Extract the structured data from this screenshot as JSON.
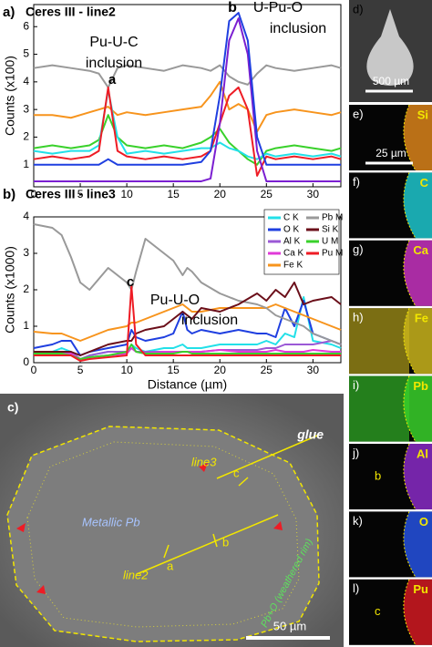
{
  "chart_data": [
    {
      "type": "line",
      "title": "Ceres III - line2",
      "ylabel": "Counts (x100)",
      "annotations": [
        "a)",
        "Pu-U-C",
        "inclusion",
        "a",
        "b",
        "U-Pu-O",
        "inclusion"
      ],
      "x": [
        0,
        2,
        4,
        6,
        7,
        8,
        9,
        10,
        12,
        14,
        16,
        18,
        19,
        20,
        21,
        22,
        23,
        24,
        25,
        26,
        28,
        30,
        32,
        33
      ],
      "xlim": [
        0,
        33
      ],
      "xticks": [
        0,
        5,
        10,
        15,
        20,
        25,
        30
      ],
      "ylim": [
        0.2,
        6.8
      ],
      "yticks": [
        1,
        2,
        3,
        4,
        5,
        6
      ],
      "series": [
        {
          "color": "#999999",
          "values": [
            4.5,
            4.6,
            4.5,
            4.4,
            4.3,
            3.8,
            4.5,
            4.6,
            4.5,
            4.4,
            4.6,
            4.5,
            4.4,
            4.6,
            4.2,
            4.0,
            3.9,
            4.3,
            4.6,
            4.5,
            4.4,
            4.5,
            4.6,
            4.5
          ]
        },
        {
          "color": "#f7941d",
          "values": [
            2.8,
            2.8,
            2.7,
            2.9,
            3.0,
            3.1,
            2.8,
            2.9,
            2.8,
            2.9,
            3.0,
            3.1,
            3.5,
            4.0,
            3.0,
            3.2,
            3.0,
            2.2,
            2.8,
            2.9,
            3.0,
            2.9,
            2.8,
            2.9
          ]
        },
        {
          "color": "#39d12b",
          "values": [
            1.6,
            1.7,
            1.6,
            1.7,
            1.9,
            2.8,
            2.0,
            1.7,
            1.6,
            1.7,
            1.6,
            1.8,
            2.0,
            2.3,
            1.8,
            1.5,
            1.2,
            1.0,
            1.5,
            1.6,
            1.7,
            1.6,
            1.5,
            1.6
          ]
        },
        {
          "color": "#22e0e8",
          "values": [
            1.5,
            1.4,
            1.5,
            1.5,
            1.7,
            3.7,
            2.0,
            1.4,
            1.5,
            1.4,
            1.5,
            1.6,
            1.6,
            1.8,
            1.6,
            1.5,
            1.3,
            1.2,
            1.4,
            1.3,
            1.4,
            1.3,
            1.4,
            1.3
          ]
        },
        {
          "color": "#ee1c25",
          "values": [
            1.2,
            1.3,
            1.2,
            1.3,
            1.5,
            3.8,
            1.5,
            1.3,
            1.2,
            1.3,
            1.2,
            1.3,
            1.5,
            2.5,
            3.5,
            3.8,
            3.0,
            0.6,
            1.3,
            1.2,
            1.3,
            1.2,
            1.3,
            1.2
          ]
        },
        {
          "color": "#7b1fd1",
          "values": [
            0.4,
            0.4,
            0.4,
            0.4,
            0.4,
            0.4,
            0.4,
            0.4,
            0.4,
            0.4,
            0.4,
            0.4,
            0.5,
            2.5,
            5.5,
            6.3,
            5.0,
            1.5,
            0.4,
            0.4,
            0.4,
            0.4,
            0.4,
            0.4
          ]
        },
        {
          "color": "#1f3fe0",
          "values": [
            1.0,
            1.0,
            1.0,
            1.0,
            1.0,
            1.2,
            1.0,
            1.0,
            1.0,
            1.0,
            1.0,
            1.1,
            1.5,
            3.5,
            6.2,
            6.5,
            5.5,
            2.0,
            1.0,
            1.0,
            1.0,
            1.0,
            1.0,
            1.0
          ]
        }
      ]
    },
    {
      "type": "line",
      "title": "Ceres III - line3",
      "xlabel": "Distance (µm)",
      "ylabel": "Counts (x1000)",
      "annotations": [
        "b)",
        "c",
        "Pu-U-O",
        "inclusion"
      ],
      "x": [
        0,
        2,
        3,
        4,
        5,
        6,
        8,
        10,
        10.5,
        11,
        12,
        14,
        15,
        16,
        16.5,
        17,
        18,
        20,
        22,
        24,
        25,
        26,
        27,
        28,
        29,
        30,
        32,
        33
      ],
      "xlim": [
        0,
        33
      ],
      "xticks": [
        0,
        5,
        10,
        15,
        20,
        25,
        30
      ],
      "ylim": [
        0,
        4
      ],
      "yticks": [
        0,
        1,
        2,
        3,
        4
      ],
      "legend": "upper right",
      "series": [
        {
          "name": "C K",
          "color": "#22e0e8",
          "values": [
            0.3,
            0.3,
            0.4,
            0.3,
            0.1,
            0.2,
            0.3,
            0.3,
            0.5,
            0.4,
            0.3,
            0.4,
            0.4,
            0.5,
            0.4,
            0.4,
            0.4,
            0.5,
            0.5,
            0.5,
            0.6,
            0.5,
            0.8,
            0.7,
            1.8,
            0.6,
            0.5,
            0.4
          ]
        },
        {
          "name": "O K",
          "color": "#1f3fe0",
          "values": [
            0.4,
            0.5,
            0.6,
            0.6,
            0.2,
            0.3,
            0.4,
            0.5,
            0.9,
            0.7,
            0.6,
            0.7,
            0.8,
            1.4,
            0.9,
            0.8,
            0.9,
            0.8,
            0.9,
            0.8,
            0.8,
            0.7,
            1.5,
            1.0,
            1.7,
            0.8,
            0.6,
            0.5
          ]
        },
        {
          "name": "Al K",
          "color": "#9b59d6",
          "values": [
            0.3,
            0.3,
            0.3,
            0.3,
            0.1,
            0.2,
            0.3,
            0.3,
            0.4,
            0.3,
            0.3,
            0.3,
            0.3,
            0.3,
            0.3,
            0.3,
            0.3,
            0.35,
            0.35,
            0.35,
            0.4,
            0.4,
            0.5,
            0.5,
            0.5,
            0.5,
            0.6,
            0.5
          ]
        },
        {
          "name": "Ca K",
          "color": "#e03ad8",
          "values": [
            0.25,
            0.25,
            0.25,
            0.25,
            0.1,
            0.15,
            0.2,
            0.25,
            0.4,
            0.3,
            0.25,
            0.3,
            0.3,
            0.3,
            0.3,
            0.3,
            0.3,
            0.35,
            0.3,
            0.3,
            0.3,
            0.35,
            0.3,
            0.3,
            0.3,
            0.35,
            0.3,
            0.3
          ]
        },
        {
          "name": "Fe K",
          "color": "#f7941d",
          "values": [
            0.85,
            0.8,
            0.8,
            0.7,
            0.6,
            0.7,
            0.9,
            1.0,
            1.1,
            1.1,
            1.2,
            1.4,
            1.5,
            1.6,
            1.5,
            1.4,
            1.4,
            1.5,
            1.5,
            1.5,
            1.5,
            1.6,
            1.5,
            1.4,
            1.3,
            1.2,
            1.0,
            0.9
          ]
        },
        {
          "name": "Pb M",
          "color": "#999999",
          "values": [
            3.8,
            3.7,
            3.5,
            2.9,
            2.2,
            2.0,
            2.6,
            2.2,
            2.0,
            2.5,
            3.4,
            3.0,
            2.8,
            2.4,
            2.6,
            2.5,
            2.2,
            1.9,
            1.7,
            1.6,
            1.5,
            1.3,
            1.2,
            1.1,
            1.0,
            0.8,
            0.6,
            0.5
          ]
        },
        {
          "name": "Si K",
          "color": "#6b0f1a",
          "values": [
            0.3,
            0.3,
            0.3,
            0.3,
            0.2,
            0.3,
            0.5,
            0.6,
            0.6,
            0.8,
            0.9,
            1.0,
            1.2,
            1.4,
            1.3,
            1.2,
            1.5,
            1.4,
            1.6,
            1.9,
            1.7,
            2.0,
            1.8,
            2.2,
            1.6,
            1.7,
            1.8,
            1.6
          ]
        },
        {
          "name": "U M",
          "color": "#39d12b",
          "values": [
            0.25,
            0.25,
            0.25,
            0.2,
            0.1,
            0.15,
            0.2,
            0.3,
            0.5,
            0.3,
            0.25,
            0.25,
            0.25,
            0.3,
            0.3,
            0.25,
            0.25,
            0.25,
            0.25,
            0.25,
            0.25,
            0.25,
            0.25,
            0.25,
            0.25,
            0.25,
            0.25,
            0.25
          ]
        },
        {
          "name": "Pu M",
          "color": "#ee1c25",
          "values": [
            0.2,
            0.2,
            0.2,
            0.2,
            0.05,
            0.1,
            0.15,
            0.2,
            2.1,
            0.5,
            0.2,
            0.2,
            0.2,
            0.2,
            0.2,
            0.2,
            0.2,
            0.2,
            0.2,
            0.2,
            0.2,
            0.2,
            0.2,
            0.2,
            0.2,
            0.2,
            0.2,
            0.2
          ]
        }
      ]
    }
  ],
  "panel_c": {
    "label": "c)",
    "glue": "glue",
    "metal": "Metallic Pb",
    "line2": "line2",
    "line3": "line3",
    "a": "a",
    "b": "b",
    "c": "c",
    "rim": "Pb+O (weathered rim)",
    "scale": "50 µm"
  },
  "maps": [
    {
      "label": "d)",
      "scale": "500 µm"
    },
    {
      "label": "e)",
      "element": "Si",
      "scale": "25 µm"
    },
    {
      "label": "f)",
      "element": "C"
    },
    {
      "label": "g)",
      "element": "Ca"
    },
    {
      "label": "h)",
      "element": "Fe"
    },
    {
      "label": "i)",
      "element": "Pb"
    },
    {
      "label": "j)",
      "element": "Al",
      "marker": "b"
    },
    {
      "label": "k)",
      "element": "O"
    },
    {
      "label": "l)",
      "element": "Pu",
      "marker": "c"
    }
  ]
}
